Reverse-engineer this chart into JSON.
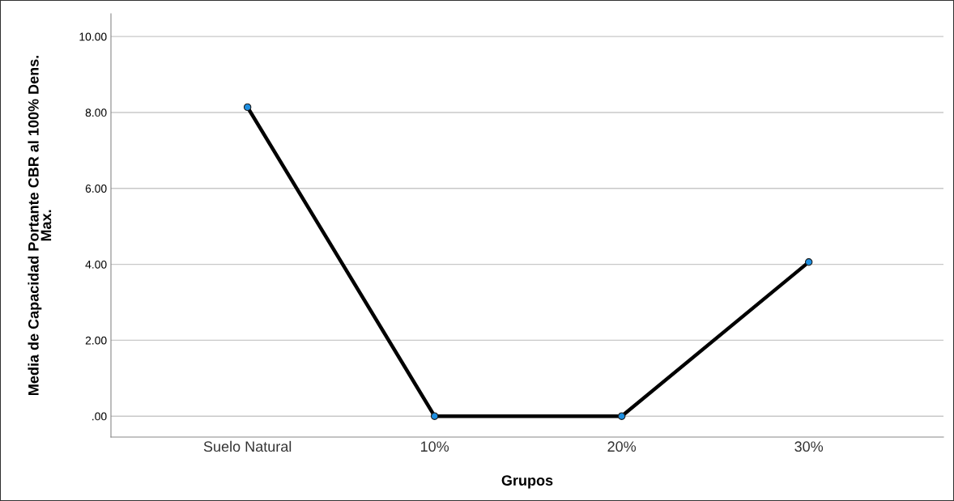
{
  "chart_data": {
    "type": "line",
    "xlabel": "Grupos",
    "ylabel": "Media de Capacidad Portante CBR al 100% Dens.\nMax.",
    "categories": [
      "Suelo Natural",
      "10%",
      "20%",
      "30%"
    ],
    "series": [
      {
        "color": "#000000",
        "values": [
          8.14,
          0.0,
          0.0,
          4.06
        ]
      }
    ],
    "ylim": [
      -0.55,
      10.6
    ],
    "yticks": [
      {
        "value": 0,
        "label": ".00"
      },
      {
        "value": 2,
        "label": "2.00"
      },
      {
        "value": 4,
        "label": "4.00"
      },
      {
        "value": 6,
        "label": "6.00"
      },
      {
        "value": 8,
        "label": "8.00"
      },
      {
        "value": 10,
        "label": "10.00"
      }
    ],
    "grid": "y",
    "marker": "circle",
    "line_style": "solid"
  }
}
